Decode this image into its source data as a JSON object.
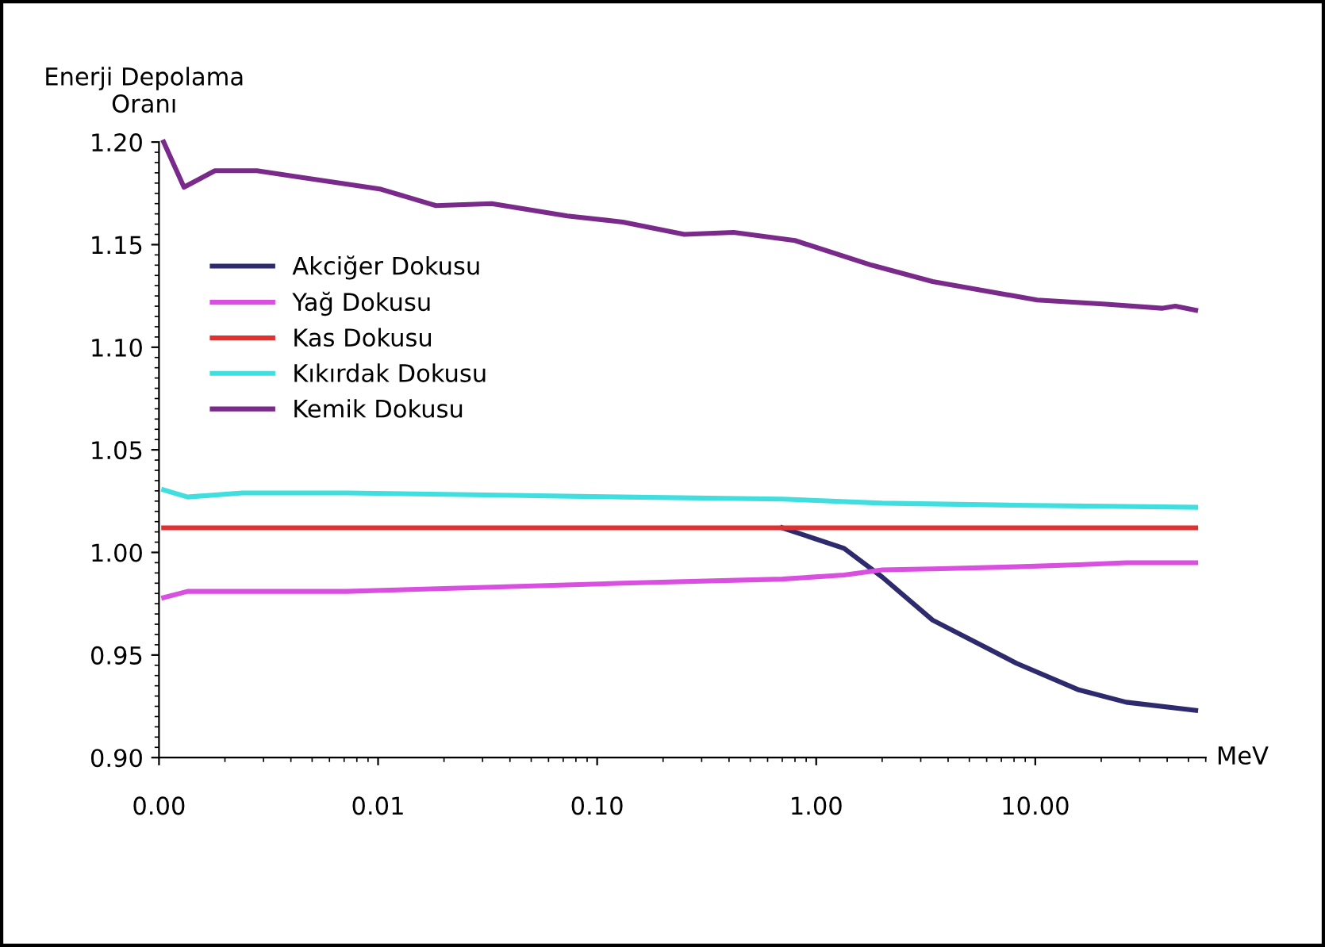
{
  "chart_data": {
    "type": "line",
    "ylabel": "Enerji Depolama\nOranı",
    "xlabel": "MeV",
    "log": "x",
    "grid": false,
    "legend": "left",
    "marker": "none",
    "line_style": "solid",
    "xlim": [
      0.001,
      60
    ],
    "xticks": [
      {
        "value": 0.001,
        "label": "0.00"
      },
      {
        "value": 0.01,
        "label": "0.01"
      },
      {
        "value": 0.1,
        "label": "0.10"
      },
      {
        "value": 1,
        "label": "1.00"
      },
      {
        "value": 10,
        "label": "10.00"
      }
    ],
    "ylim": [
      0.9,
      1.2
    ],
    "yticks": [
      {
        "value": 0.9,
        "label": "0.90"
      },
      {
        "value": 0.95,
        "label": "0.95"
      },
      {
        "value": 1.0,
        "label": "1.00"
      },
      {
        "value": 1.05,
        "label": "1.05"
      },
      {
        "value": 1.1,
        "label": "1.10"
      },
      {
        "value": 1.15,
        "label": "1.15"
      },
      {
        "value": 1.2,
        "label": "1.20"
      }
    ],
    "series": [
      {
        "name": "Akciğer Dokusu",
        "color": "#2e2a6e",
        "x": [
          0.7,
          1.34,
          2.0,
          3.4,
          8.2,
          15.8,
          26,
          54
        ],
        "values": [
          1.012,
          1.002,
          0.988,
          0.967,
          0.946,
          0.933,
          0.927,
          0.923
        ]
      },
      {
        "name": "Yağ Dokusu",
        "color": "#d94fe0",
        "x": [
          0.00105,
          0.00135,
          0.0024,
          0.0072,
          0.031,
          0.131,
          0.7,
          1.34,
          2.0,
          3.4,
          8.2,
          15.8,
          26,
          54
        ],
        "values": [
          0.978,
          0.981,
          0.981,
          0.981,
          0.983,
          0.985,
          0.987,
          0.989,
          0.9915,
          0.992,
          0.993,
          0.994,
          0.995,
          0.995
        ]
      },
      {
        "name": "Kas Dokusu",
        "color": "#e03030",
        "x": [
          0.00105,
          0.0024,
          0.031,
          0.131,
          0.7,
          2.0,
          8.2,
          54
        ],
        "values": [
          1.012,
          1.012,
          1.012,
          1.012,
          1.012,
          1.012,
          1.012,
          1.012
        ]
      },
      {
        "name": "Kıkırdak Dokusu",
        "color": "#40dede",
        "x": [
          0.00105,
          0.00135,
          0.0024,
          0.0072,
          0.031,
          0.131,
          0.7,
          2.0,
          8.2,
          54
        ],
        "values": [
          1.0305,
          1.027,
          1.029,
          1.029,
          1.028,
          1.027,
          1.026,
          1.024,
          1.023,
          1.022
        ]
      },
      {
        "name": "Kemik Dokusu",
        "color": "#7a2a8a",
        "x": [
          0.00105,
          0.0013,
          0.0018,
          0.0028,
          0.0043,
          0.0103,
          0.0184,
          0.033,
          0.073,
          0.131,
          0.25,
          0.42,
          0.8,
          1.79,
          3.4,
          10.2,
          21,
          37.8,
          43.6,
          54
        ],
        "values": [
          1.2,
          1.178,
          1.186,
          1.186,
          1.183,
          1.177,
          1.169,
          1.17,
          1.164,
          1.161,
          1.155,
          1.156,
          1.152,
          1.14,
          1.132,
          1.123,
          1.121,
          1.119,
          1.12,
          1.118
        ]
      }
    ]
  }
}
